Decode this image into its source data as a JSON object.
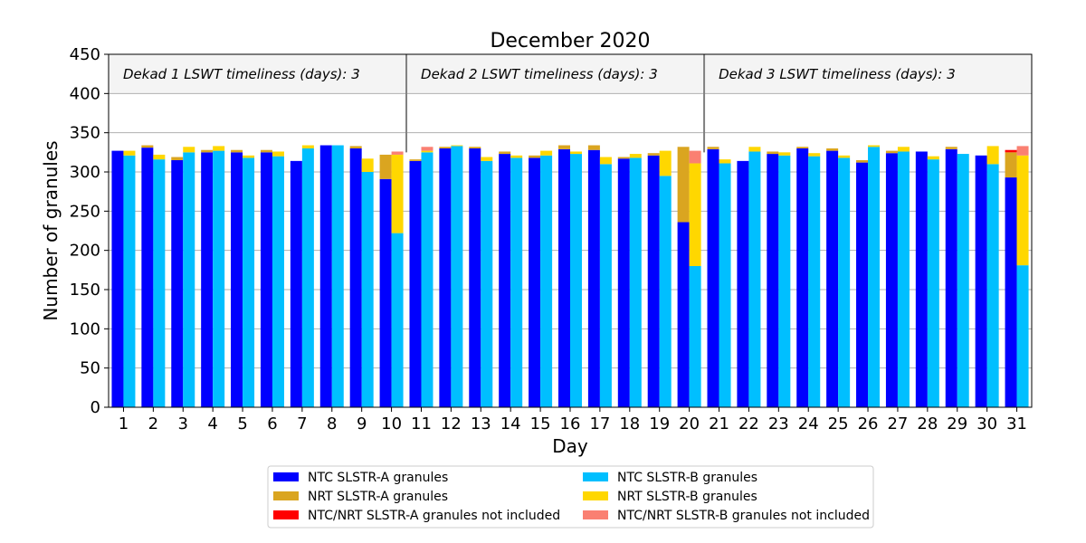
{
  "chart_data": {
    "type": "bar",
    "title": "December 2020",
    "xlabel": "Day",
    "ylabel": "Number of granules",
    "ylim": [
      0,
      450
    ],
    "yticks": [
      0,
      50,
      100,
      150,
      200,
      250,
      300,
      350,
      400,
      450
    ],
    "shaded_band": [
      400,
      450
    ],
    "categories": [
      "1",
      "2",
      "3",
      "4",
      "5",
      "6",
      "7",
      "8",
      "9",
      "10",
      "11",
      "12",
      "13",
      "14",
      "15",
      "16",
      "17",
      "18",
      "19",
      "20",
      "21",
      "22",
      "23",
      "24",
      "25",
      "26",
      "27",
      "28",
      "29",
      "30",
      "31"
    ],
    "series": [
      {
        "name": "NTC SLSTR-A granules",
        "group": "A",
        "color": "#0000ff",
        "values": [
          327,
          331,
          315,
          325,
          325,
          325,
          314,
          334,
          330,
          291,
          314,
          330,
          330,
          323,
          318,
          329,
          328,
          317,
          321,
          236,
          329,
          314,
          323,
          330,
          327,
          312,
          324,
          326,
          329,
          321,
          293
        ]
      },
      {
        "name": "NRT SLSTR-A granules",
        "group": "A",
        "color": "#daa520",
        "values": [
          0,
          3,
          4,
          3,
          3,
          3,
          0,
          0,
          3,
          31,
          2,
          2,
          2,
          3,
          3,
          5,
          6,
          2,
          3,
          96,
          3,
          0,
          3,
          2,
          3,
          3,
          3,
          0,
          3,
          0,
          32
        ]
      },
      {
        "name": "NTC/NRT SLSTR-A granules not included",
        "group": "A",
        "color": "#ff0000",
        "values": [
          0,
          0,
          0,
          0,
          0,
          0,
          0,
          0,
          0,
          0,
          0,
          0,
          0,
          0,
          0,
          0,
          0,
          0,
          0,
          0,
          0,
          0,
          0,
          0,
          0,
          0,
          0,
          0,
          0,
          0,
          3
        ]
      },
      {
        "name": "NTC SLSTR-B granules",
        "group": "B",
        "color": "#00bfff",
        "values": [
          321,
          316,
          325,
          327,
          318,
          320,
          330,
          334,
          300,
          222,
          325,
          333,
          314,
          318,
          321,
          323,
          310,
          318,
          295,
          180,
          311,
          326,
          321,
          320,
          318,
          332,
          326,
          316,
          323,
          310,
          181
        ]
      },
      {
        "name": "NRT SLSTR-B granules",
        "group": "B",
        "color": "#ffd700",
        "values": [
          6,
          6,
          7,
          6,
          3,
          6,
          4,
          0,
          17,
          100,
          2,
          1,
          5,
          3,
          6,
          3,
          9,
          5,
          32,
          131,
          5,
          6,
          4,
          4,
          3,
          2,
          6,
          4,
          0,
          23,
          140
        ]
      },
      {
        "name": "NTC/NRT SLSTR-B granules not included",
        "group": "B",
        "color": "#fa8072",
        "values": [
          0,
          0,
          0,
          0,
          0,
          0,
          0,
          0,
          0,
          4,
          5,
          0,
          0,
          0,
          0,
          0,
          0,
          0,
          0,
          16,
          0,
          0,
          0,
          0,
          0,
          0,
          0,
          0,
          0,
          0,
          12
        ]
      }
    ],
    "dividers_after_day": [
      10,
      20
    ],
    "annotations": [
      "Dekad 1 LSWT timeliness (days): 3",
      "Dekad 2 LSWT timeliness (days): 3",
      "Dekad 3 LSWT timeliness (days): 3"
    ],
    "grid": "horizontal",
    "legend_placement": "bottom-center"
  }
}
